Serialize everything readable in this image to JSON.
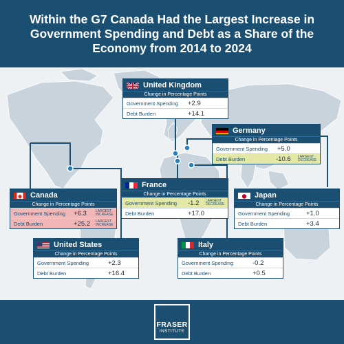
{
  "title": "Within the G7 Canada Had the Largest Increase in Government Spending and Debt as a Share of the Economy from 2014 to 2024",
  "subtitle_text": "Change in Percentage Points",
  "row_labels": {
    "spending": "Government Spending",
    "debt": "Debt Burden"
  },
  "countries": {
    "uk": {
      "name": "United Kingdom",
      "spending": "+2.9",
      "debt": "+14.1",
      "flag": "uk-flag-icon"
    },
    "germany": {
      "name": "Germany",
      "spending": "+5.0",
      "debt": "-10.6",
      "debt_note": "LARGEST DECREASE",
      "flag": "germany-flag-icon"
    },
    "france": {
      "name": "France",
      "spending": "-1.2",
      "spending_note": "LARGEST DECREASE",
      "debt": "+17.0",
      "flag": "france-flag-icon"
    },
    "canada": {
      "name": "Canada",
      "spending": "+6.3",
      "spending_note": "LARGEST INCREASE",
      "debt": "+25.2",
      "debt_note": "LARGEST INCREASE",
      "flag": "canada-flag-icon"
    },
    "japan": {
      "name": "Japan",
      "spending": "+1.0",
      "debt": "+3.4",
      "flag": "japan-flag-icon"
    },
    "us": {
      "name": "United States",
      "spending": "+2.3",
      "debt": "+16.4",
      "flag": "us-flag-icon"
    },
    "italy": {
      "name": "Italy",
      "spending": "-0.2",
      "debt": "+0.5",
      "flag": "italy-flag-icon"
    }
  },
  "colors": {
    "navy": "#1b4f72",
    "increase_highlight": "#f1b7b7",
    "decrease_highlight": "#e3e8a6",
    "map_land": "#c7d1da"
  },
  "logo": {
    "line1": "FRASER",
    "line2": "INSTITUTE"
  }
}
